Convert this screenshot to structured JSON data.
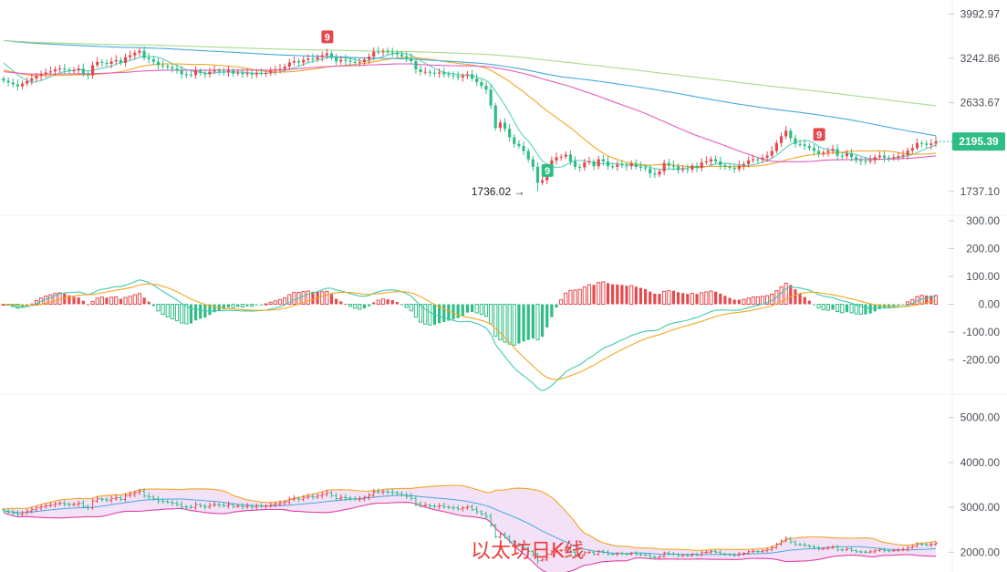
{
  "chart_data": [
    {
      "type": "candlestick",
      "panel": "price",
      "y_ticks": [
        "3992.97",
        "3242.86",
        "2633.67",
        "1737.10"
      ],
      "ylim": [
        1560,
        4120
      ],
      "scale": "log",
      "last_price": "2195.39",
      "low_annotation": "1736.02",
      "td_markers": [
        "9",
        "9",
        "9"
      ],
      "colors": {
        "up": "#e5494d",
        "down": "#2ebd85",
        "ma_fast": "#5ccfbf",
        "ma_mid": "#f5a623",
        "ma_slow": "#e45dbb",
        "ma_long": "#46a9de",
        "ma_xlong": "#a6db8a"
      },
      "closes": [
        2920,
        2895,
        2870,
        2845,
        2880,
        2915,
        2950,
        2990,
        3015,
        3035,
        3050,
        3080,
        3090,
        3075,
        3060,
        3065,
        3090,
        3020,
        2995,
        3140,
        3190,
        3175,
        3160,
        3195,
        3215,
        3175,
        3260,
        3290,
        3330,
        3360,
        3250,
        3230,
        3190,
        3140,
        3130,
        3110,
        3090,
        3060,
        3010,
        3005,
        3000,
        3060,
        3030,
        3010,
        3045,
        3060,
        3050,
        3035,
        3060,
        3020,
        3030,
        3010,
        3025,
        3005,
        3030,
        3025,
        3030,
        3060,
        3070,
        3085,
        3120,
        3180,
        3200,
        3180,
        3220,
        3240,
        3230,
        3260,
        3290,
        3320,
        3260,
        3195,
        3220,
        3205,
        3190,
        3180,
        3185,
        3225,
        3270,
        3345,
        3340,
        3350,
        3335,
        3330,
        3305,
        3275,
        3245,
        3200,
        3080,
        3040,
        3045,
        3030,
        3020,
        3035,
        3010,
        2995,
        2985,
        2965,
        2990,
        3010,
        2950,
        2900,
        2850,
        2800,
        2600,
        2340,
        2400,
        2330,
        2240,
        2170,
        2150,
        2100,
        2020,
        1950,
        1810,
        1830,
        1955,
        2010,
        2040,
        2045,
        2065,
        2000,
        1950,
        1945,
        1990,
        2000,
        1955,
        2020,
        2000,
        1955,
        1950,
        1970,
        1965,
        1955,
        1980,
        1950,
        1945,
        1935,
        1890,
        1880,
        1910,
        1985,
        1960,
        1955,
        1920,
        1930,
        1925,
        1960,
        1940,
        1990,
        2000,
        2020,
        2000,
        1965,
        1950,
        1940,
        1930,
        1960,
        1975,
        2010,
        2020,
        2015,
        2035,
        2055,
        2100,
        2180,
        2250,
        2310,
        2230,
        2170,
        2165,
        2150,
        2130,
        2100,
        2070,
        2085,
        2100,
        2120,
        2055,
        2050,
        2075,
        2040,
        2010,
        2005,
        2000,
        2010,
        2040,
        2055,
        2035,
        2030,
        2040,
        2050,
        2060,
        2105,
        2130,
        2180,
        2175,
        2160,
        2175,
        2195
      ]
    },
    {
      "type": "macd",
      "panel": "macd",
      "y_ticks": [
        "300.00",
        "200.00",
        "100.00",
        "0.00",
        "-100.00",
        "-200.00"
      ],
      "ylim": [
        -300,
        300
      ],
      "colors": {
        "hist_pos": "#e5494d",
        "hist_neg": "#2ebd85",
        "dif": "#3ecbb0",
        "dea": "#f5a623"
      }
    },
    {
      "type": "bollinger",
      "panel": "boll",
      "y_ticks": [
        "5000.00",
        "4000.00",
        "3000.00",
        "2000.00"
      ],
      "ylim": [
        1600,
        5400
      ],
      "colors": {
        "upper": "#f5a623",
        "middle": "#46a9de",
        "lower": "#e040a0",
        "fill": "#f1dcf6"
      }
    }
  ],
  "watermark": "以太坊日K线"
}
